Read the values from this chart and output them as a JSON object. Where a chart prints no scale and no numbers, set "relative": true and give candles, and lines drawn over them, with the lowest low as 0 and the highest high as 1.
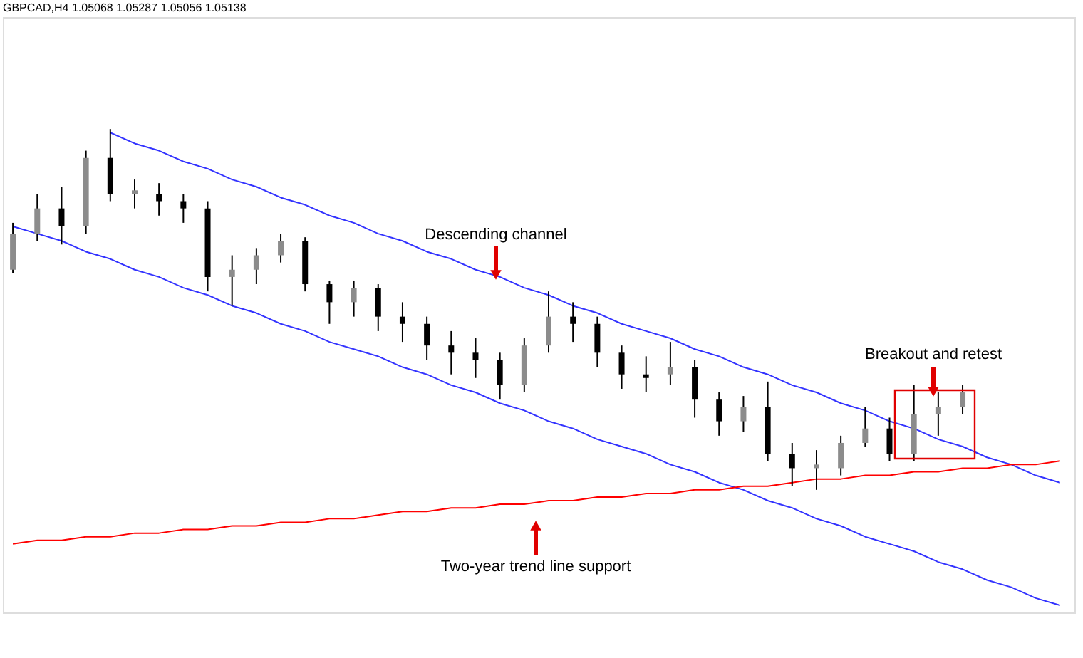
{
  "chart_data": {
    "type": "candlestick",
    "title": "GBPCAD,H4 1.05068 1.05287 1.05056 1.05138",
    "relative": true,
    "categories": [
      null,
      null,
      null,
      null,
      null,
      null,
      null,
      null,
      null,
      null,
      null,
      null,
      null,
      null,
      null,
      null,
      null,
      null,
      null,
      null,
      null,
      null,
      null,
      null,
      null,
      null,
      null,
      null,
      null,
      null,
      null,
      null,
      null,
      null,
      null,
      null,
      null,
      null,
      null,
      null,
      null,
      null,
      null,
      null
    ],
    "ohlc": [
      [
        0.61,
        0.74,
        0.6,
        0.71
      ],
      [
        0.71,
        0.82,
        0.69,
        0.78
      ],
      [
        0.78,
        0.84,
        0.68,
        0.73
      ],
      [
        0.73,
        0.94,
        0.71,
        0.92
      ],
      [
        0.92,
        1.0,
        0.8,
        0.82
      ],
      [
        0.82,
        0.86,
        0.78,
        0.83
      ],
      [
        0.82,
        0.85,
        0.76,
        0.8
      ],
      [
        0.8,
        0.82,
        0.74,
        0.78
      ],
      [
        0.78,
        0.8,
        0.55,
        0.59
      ],
      [
        0.59,
        0.65,
        0.51,
        0.61
      ],
      [
        0.61,
        0.67,
        0.57,
        0.65
      ],
      [
        0.65,
        0.71,
        0.63,
        0.69
      ],
      [
        0.69,
        0.7,
        0.55,
        0.57
      ],
      [
        0.57,
        0.58,
        0.46,
        0.52
      ],
      [
        0.52,
        0.58,
        0.48,
        0.56
      ],
      [
        0.56,
        0.57,
        0.44,
        0.48
      ],
      [
        0.48,
        0.52,
        0.41,
        0.46
      ],
      [
        0.46,
        0.48,
        0.36,
        0.4
      ],
      [
        0.4,
        0.44,
        0.32,
        0.38
      ],
      [
        0.38,
        0.42,
        0.31,
        0.36
      ],
      [
        0.36,
        0.38,
        0.25,
        0.29
      ],
      [
        0.29,
        0.42,
        0.27,
        0.4
      ],
      [
        0.4,
        0.55,
        0.38,
        0.48
      ],
      [
        0.48,
        0.52,
        0.41,
        0.46
      ],
      [
        0.46,
        0.48,
        0.34,
        0.38
      ],
      [
        0.38,
        0.4,
        0.28,
        0.32
      ],
      [
        0.32,
        0.37,
        0.27,
        0.31
      ],
      [
        0.32,
        0.41,
        0.29,
        0.34
      ],
      [
        0.34,
        0.36,
        0.2,
        0.25
      ],
      [
        0.25,
        0.27,
        0.15,
        0.19
      ],
      [
        0.19,
        0.26,
        0.16,
        0.23
      ],
      [
        0.23,
        0.3,
        0.08,
        0.1
      ],
      [
        0.1,
        0.13,
        0.01,
        0.06
      ],
      [
        0.06,
        0.11,
        0.0,
        0.07
      ],
      [
        0.06,
        0.15,
        0.04,
        0.13
      ],
      [
        0.13,
        0.23,
        0.12,
        0.17
      ],
      [
        0.17,
        0.2,
        0.08,
        0.1
      ],
      [
        0.1,
        0.29,
        0.08,
        0.21
      ],
      [
        0.21,
        0.27,
        0.15,
        0.23
      ],
      [
        0.23,
        0.29,
        0.21,
        0.27
      ],
      null,
      null,
      null,
      null
    ],
    "series": [
      {
        "type": "line",
        "color": "#3333ff",
        "values": [
          null,
          null,
          null,
          null,
          0.99,
          0.96,
          0.94,
          0.91,
          0.89,
          0.86,
          0.84,
          0.81,
          0.79,
          0.76,
          0.74,
          0.71,
          0.69,
          0.66,
          0.64,
          0.61,
          0.59,
          0.56,
          0.54,
          0.51,
          0.49,
          0.46,
          0.44,
          0.42,
          0.39,
          0.37,
          0.34,
          0.32,
          0.29,
          0.27,
          0.24,
          0.22,
          0.19,
          0.17,
          0.14,
          0.12,
          0.09,
          0.07,
          0.04,
          0.02
        ]
      },
      {
        "type": "line",
        "color": "#3333ff",
        "values": [
          0.73,
          0.71,
          0.69,
          0.66,
          0.64,
          0.61,
          0.59,
          0.56,
          0.54,
          0.51,
          0.49,
          0.46,
          0.44,
          0.41,
          0.39,
          0.37,
          0.34,
          0.32,
          0.29,
          0.27,
          0.24,
          0.22,
          0.19,
          0.17,
          0.14,
          0.12,
          0.1,
          0.07,
          0.05,
          0.02,
          0.0,
          -0.03,
          -0.05,
          -0.08,
          -0.1,
          -0.13,
          -0.15,
          -0.17,
          -0.2,
          -0.22,
          -0.25,
          -0.27,
          -0.3,
          -0.32
        ]
      },
      {
        "type": "line",
        "color": "#ff0000",
        "values": [
          -0.15,
          -0.14,
          -0.14,
          -0.13,
          -0.13,
          -0.12,
          -0.12,
          -0.11,
          -0.11,
          -0.1,
          -0.1,
          -0.09,
          -0.09,
          -0.08,
          -0.08,
          -0.07,
          -0.06,
          -0.06,
          -0.05,
          -0.05,
          -0.04,
          -0.04,
          -0.03,
          -0.03,
          -0.02,
          -0.02,
          -0.01,
          -0.01,
          0.0,
          0.0,
          0.01,
          0.01,
          0.02,
          0.03,
          0.03,
          0.04,
          0.04,
          0.05,
          0.05,
          0.06,
          0.06,
          0.07,
          0.07,
          0.08
        ]
      }
    ],
    "annotations": [
      "Descending channel",
      "Breakout and retest",
      "Two-year trend line support"
    ]
  }
}
